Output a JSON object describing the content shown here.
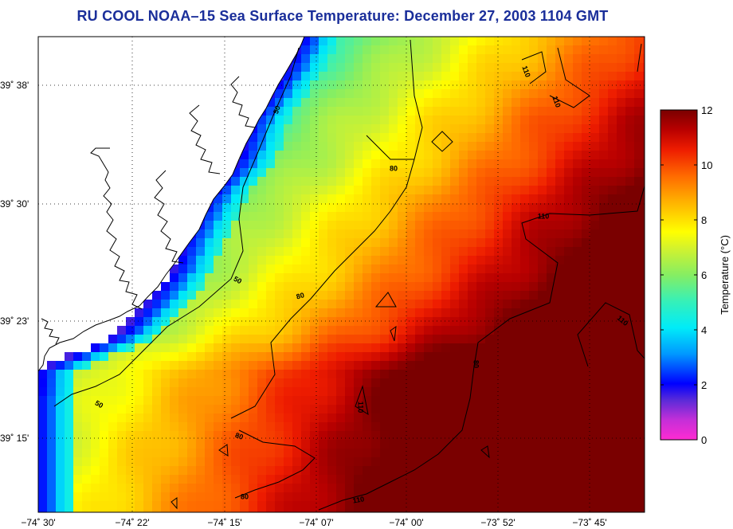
{
  "title": "RU COOL  NOAA–15  Sea Surface Temperature:  December 27, 2003 1104 GMT",
  "chart_data": {
    "type": "heatmap",
    "title": "RU COOL  NOAA–15  Sea Surface Temperature:  December 27, 2003 1104 GMT",
    "x_tick_labels": [
      "−74˚ 30'",
      "−74˚ 22'",
      "−74˚ 15'",
      "−74˚ 07'",
      "−74˚ 00'",
      "−73˚ 52'",
      "−73˚ 45'"
    ],
    "y_tick_labels": [
      "39˚ 38'",
      "39˚ 30'",
      "39˚ 23'",
      "39˚ 15'"
    ],
    "colorbar": {
      "label": "Temperature (°C)",
      "range": [
        0,
        12
      ],
      "ticks": [
        "0",
        "2",
        "4",
        "6",
        "8",
        "10",
        "12"
      ]
    },
    "contour_labels": [
      "50",
      "50",
      "50",
      "80",
      "80",
      "80",
      "80",
      "80",
      "110",
      "110",
      "110",
      "110",
      "110",
      "110"
    ],
    "grid": true,
    "colors": {
      "land": "#ffffff",
      "coast": "#000000",
      "title": "#1a2e9a"
    }
  }
}
